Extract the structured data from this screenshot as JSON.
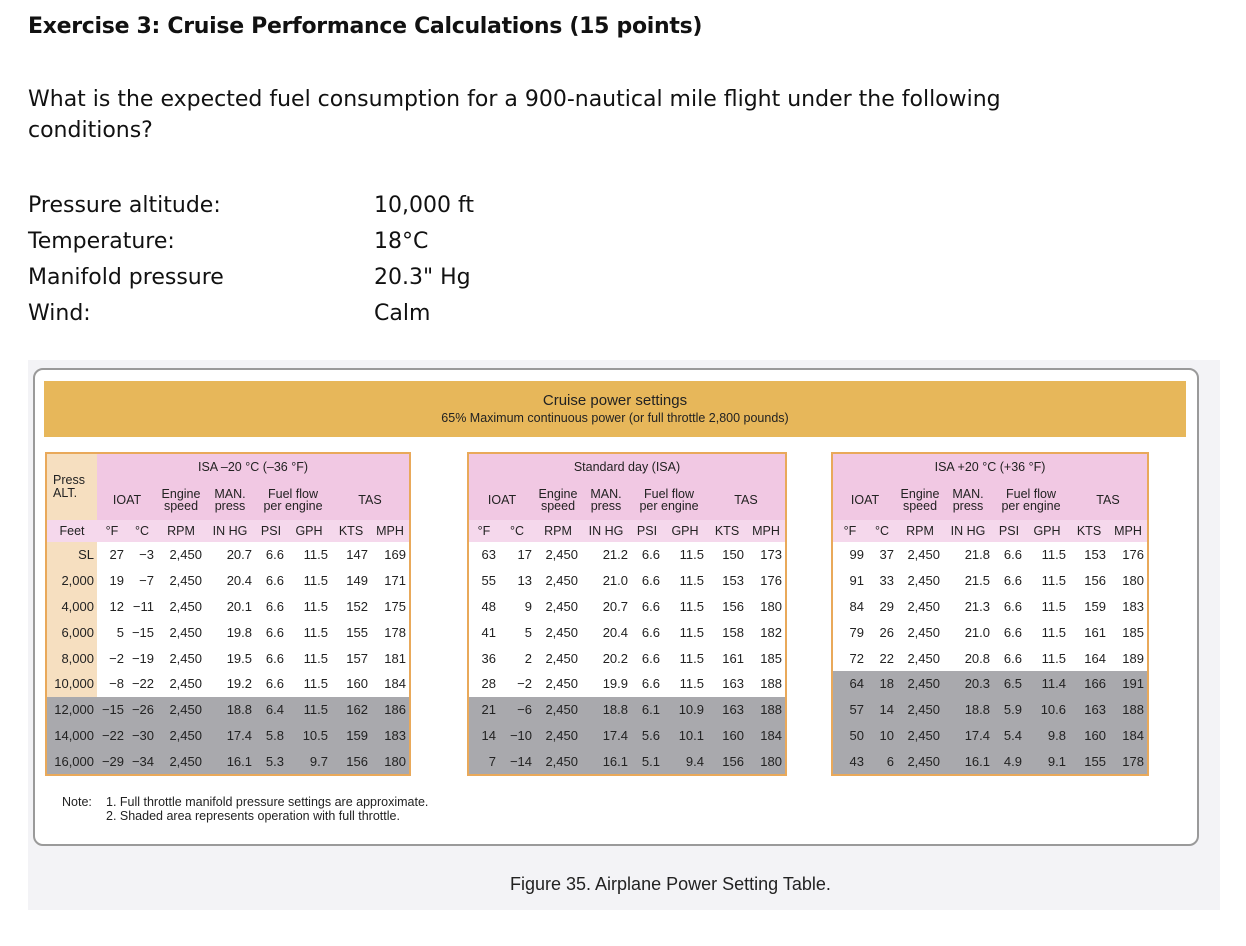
{
  "exercise": {
    "title": "Exercise 3: Cruise Performance Calculations (15 points)",
    "question": "What is the expected fuel consumption for a 900-nautical mile flight under the following conditions?",
    "conditions": [
      {
        "label": "Pressure altitude:",
        "value": "10,000 ft"
      },
      {
        "label": "Temperature:",
        "value": "18°C"
      },
      {
        "label": "Manifold pressure",
        "value": "20.3\" Hg"
      },
      {
        "label": "Wind:",
        "value": "Calm"
      }
    ]
  },
  "figure": {
    "banner_title": "Cruise power settings",
    "banner_subtitle": "65% Maximum continuous power (or full throttle 2,800 pounds)",
    "press_alt_label": [
      "Press",
      "ALT."
    ],
    "feet_label": "Feet",
    "altitudes": [
      "SL",
      "2,000",
      "4,000",
      "6,000",
      "8,000",
      "10,000",
      "12,000",
      "14,000",
      "16,000"
    ],
    "col_headers": {
      "ioat": "IOAT",
      "engine_speed": [
        "Engine",
        "speed"
      ],
      "man_press": [
        "MAN.",
        "press"
      ],
      "fuel_flow": [
        "Fuel flow",
        "per engine"
      ],
      "tas": "TAS"
    },
    "units": [
      "°F",
      "°C",
      "RPM",
      "IN HG",
      "PSI",
      "GPH",
      "KTS",
      "MPH"
    ],
    "sections": [
      {
        "title": "ISA –20 °C (–36 °F)",
        "rows": [
          [
            "27",
            "-3",
            "2,450",
            "20.7",
            "6.6",
            "11.5",
            "147",
            "169"
          ],
          [
            "19",
            "-7",
            "2,450",
            "20.4",
            "6.6",
            "11.5",
            "149",
            "171"
          ],
          [
            "12",
            "-11",
            "2,450",
            "20.1",
            "6.6",
            "11.5",
            "152",
            "175"
          ],
          [
            "5",
            "-15",
            "2,450",
            "19.8",
            "6.6",
            "11.5",
            "155",
            "178"
          ],
          [
            "-2",
            "-19",
            "2,450",
            "19.5",
            "6.6",
            "11.5",
            "157",
            "181"
          ],
          [
            "-8",
            "-22",
            "2,450",
            "19.2",
            "6.6",
            "11.5",
            "160",
            "184"
          ],
          [
            "-15",
            "-26",
            "2,450",
            "18.8",
            "6.4",
            "11.5",
            "162",
            "186"
          ],
          [
            "-22",
            "-30",
            "2,450",
            "17.4",
            "5.8",
            "10.5",
            "159",
            "183"
          ],
          [
            "-29",
            "-34",
            "2,450",
            "16.1",
            "5.3",
            "9.7",
            "156",
            "180"
          ]
        ],
        "shaded_rows": [
          6,
          7,
          8
        ]
      },
      {
        "title": "Standard day (ISA)",
        "rows": [
          [
            "63",
            "17",
            "2,450",
            "21.2",
            "6.6",
            "11.5",
            "150",
            "173"
          ],
          [
            "55",
            "13",
            "2,450",
            "21.0",
            "6.6",
            "11.5",
            "153",
            "176"
          ],
          [
            "48",
            "9",
            "2,450",
            "20.7",
            "6.6",
            "11.5",
            "156",
            "180"
          ],
          [
            "41",
            "5",
            "2,450",
            "20.4",
            "6.6",
            "11.5",
            "158",
            "182"
          ],
          [
            "36",
            "2",
            "2,450",
            "20.2",
            "6.6",
            "11.5",
            "161",
            "185"
          ],
          [
            "28",
            "-2",
            "2,450",
            "19.9",
            "6.6",
            "11.5",
            "163",
            "188"
          ],
          [
            "21",
            "-6",
            "2,450",
            "18.8",
            "6.1",
            "10.9",
            "163",
            "188"
          ],
          [
            "14",
            "-10",
            "2,450",
            "17.4",
            "5.6",
            "10.1",
            "160",
            "184"
          ],
          [
            "7",
            "-14",
            "2,450",
            "16.1",
            "5.1",
            "9.4",
            "156",
            "180"
          ]
        ],
        "shaded_rows": [
          6,
          7,
          8
        ]
      },
      {
        "title": "ISA +20 °C (+36 °F)",
        "rows": [
          [
            "99",
            "37",
            "2,450",
            "21.8",
            "6.6",
            "11.5",
            "153",
            "176"
          ],
          [
            "91",
            "33",
            "2,450",
            "21.5",
            "6.6",
            "11.5",
            "156",
            "180"
          ],
          [
            "84",
            "29",
            "2,450",
            "21.3",
            "6.6",
            "11.5",
            "159",
            "183"
          ],
          [
            "79",
            "26",
            "2,450",
            "21.0",
            "6.6",
            "11.5",
            "161",
            "185"
          ],
          [
            "72",
            "22",
            "2,450",
            "20.8",
            "6.6",
            "11.5",
            "164",
            "189"
          ],
          [
            "64",
            "18",
            "2,450",
            "20.3",
            "6.5",
            "11.4",
            "166",
            "191"
          ],
          [
            "57",
            "14",
            "2,450",
            "18.8",
            "5.9",
            "10.6",
            "163",
            "188"
          ],
          [
            "50",
            "10",
            "2,450",
            "17.4",
            "5.4",
            "9.8",
            "160",
            "184"
          ],
          [
            "43",
            "6",
            "2,450",
            "16.1",
            "4.9",
            "9.1",
            "155",
            "178"
          ]
        ],
        "shaded_rows": [
          5,
          6,
          7,
          8
        ]
      }
    ],
    "notes_label": "Note:",
    "notes": [
      "1. Full throttle manifold pressure settings are approximate.",
      "2. Shaded area represents operation with full throttle."
    ],
    "caption": "Figure 35. Airplane Power Setting Table."
  }
}
